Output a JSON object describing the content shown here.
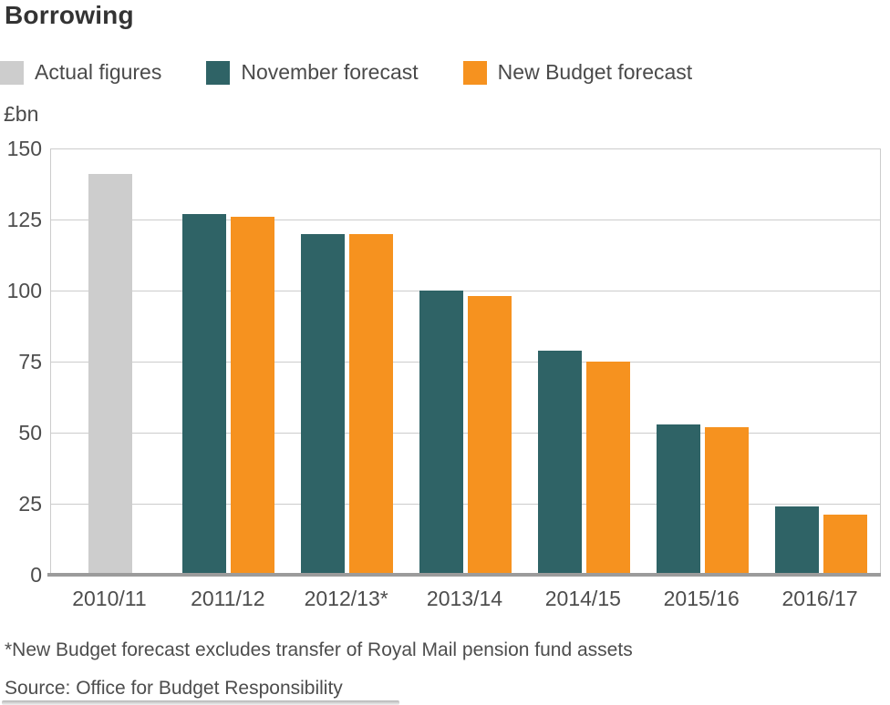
{
  "page": {
    "footnotes": {
      "asterisk_note": "*New Budget forecast excludes transfer of Royal Mail pension fund assets",
      "source": "Source: Office for Budget Responsibility"
    }
  },
  "chart_data": {
    "type": "bar",
    "title": "Borrowing",
    "y_axis_label": "£bn",
    "ylim": [
      0,
      150
    ],
    "y_ticks": [
      0,
      25,
      50,
      75,
      100,
      125,
      150
    ],
    "grid": "horizontal",
    "legend_position": "top",
    "categories": [
      "2010/11",
      "2011/12",
      "2012/13*",
      "2013/14",
      "2014/15",
      "2015/16",
      "2016/17"
    ],
    "series": [
      {
        "name": "Actual figures",
        "color": "#cdcdcd",
        "values": [
          141,
          null,
          null,
          null,
          null,
          null,
          null
        ]
      },
      {
        "name": "November forecast",
        "color": "#2f6366",
        "values": [
          null,
          127,
          120,
          100,
          79,
          53,
          24
        ]
      },
      {
        "name": "New Budget forecast",
        "color": "#f6921f",
        "values": [
          null,
          126,
          120,
          98,
          75,
          52,
          21
        ]
      }
    ],
    "colors": {
      "gridline": "#cccccc",
      "x_axis": "#9b9b9b",
      "tick_text": "#4d4d4d",
      "title_text": "#333333"
    }
  }
}
